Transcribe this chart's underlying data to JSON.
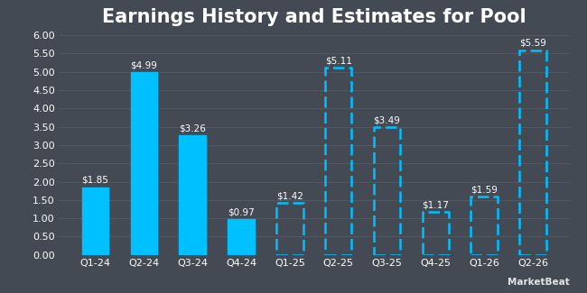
{
  "title": "Earnings History and Estimates for Pool",
  "categories": [
    "Q1-24",
    "Q2-24",
    "Q3-24",
    "Q4-24",
    "Q1-25",
    "Q2-25",
    "Q3-25",
    "Q4-25",
    "Q1-26",
    "Q2-26"
  ],
  "values": [
    1.85,
    4.99,
    3.26,
    0.97,
    1.42,
    5.11,
    3.49,
    1.17,
    1.59,
    5.59
  ],
  "labels": [
    "$1.85",
    "$4.99",
    "$3.26",
    "$0.97",
    "$1.42",
    "$5.11",
    "$3.49",
    "$1.17",
    "$1.59",
    "$5.59"
  ],
  "is_estimate": [
    false,
    false,
    false,
    false,
    true,
    true,
    true,
    true,
    true,
    true
  ],
  "bar_color_solid": "#00c0ff",
  "bar_color_estimate": "#00c0ff",
  "background_color": "#434a54",
  "plot_bg_color": "#434a54",
  "grid_color": "#505863",
  "text_color": "#ffffff",
  "title_color": "#ffffff",
  "ylim": [
    0,
    6.0
  ],
  "yticks": [
    0.0,
    0.5,
    1.0,
    1.5,
    2.0,
    2.5,
    3.0,
    3.5,
    4.0,
    4.5,
    5.0,
    5.5,
    6.0
  ],
  "ytick_labels": [
    "0.00",
    "0.50",
    "1.00",
    "1.50",
    "2.00",
    "2.50",
    "3.00",
    "3.50",
    "4.00",
    "4.50",
    "5.00",
    "5.50",
    "6.00"
  ],
  "title_fontsize": 15,
  "label_fontsize": 7.5,
  "tick_fontsize": 8,
  "bar_width": 0.55
}
